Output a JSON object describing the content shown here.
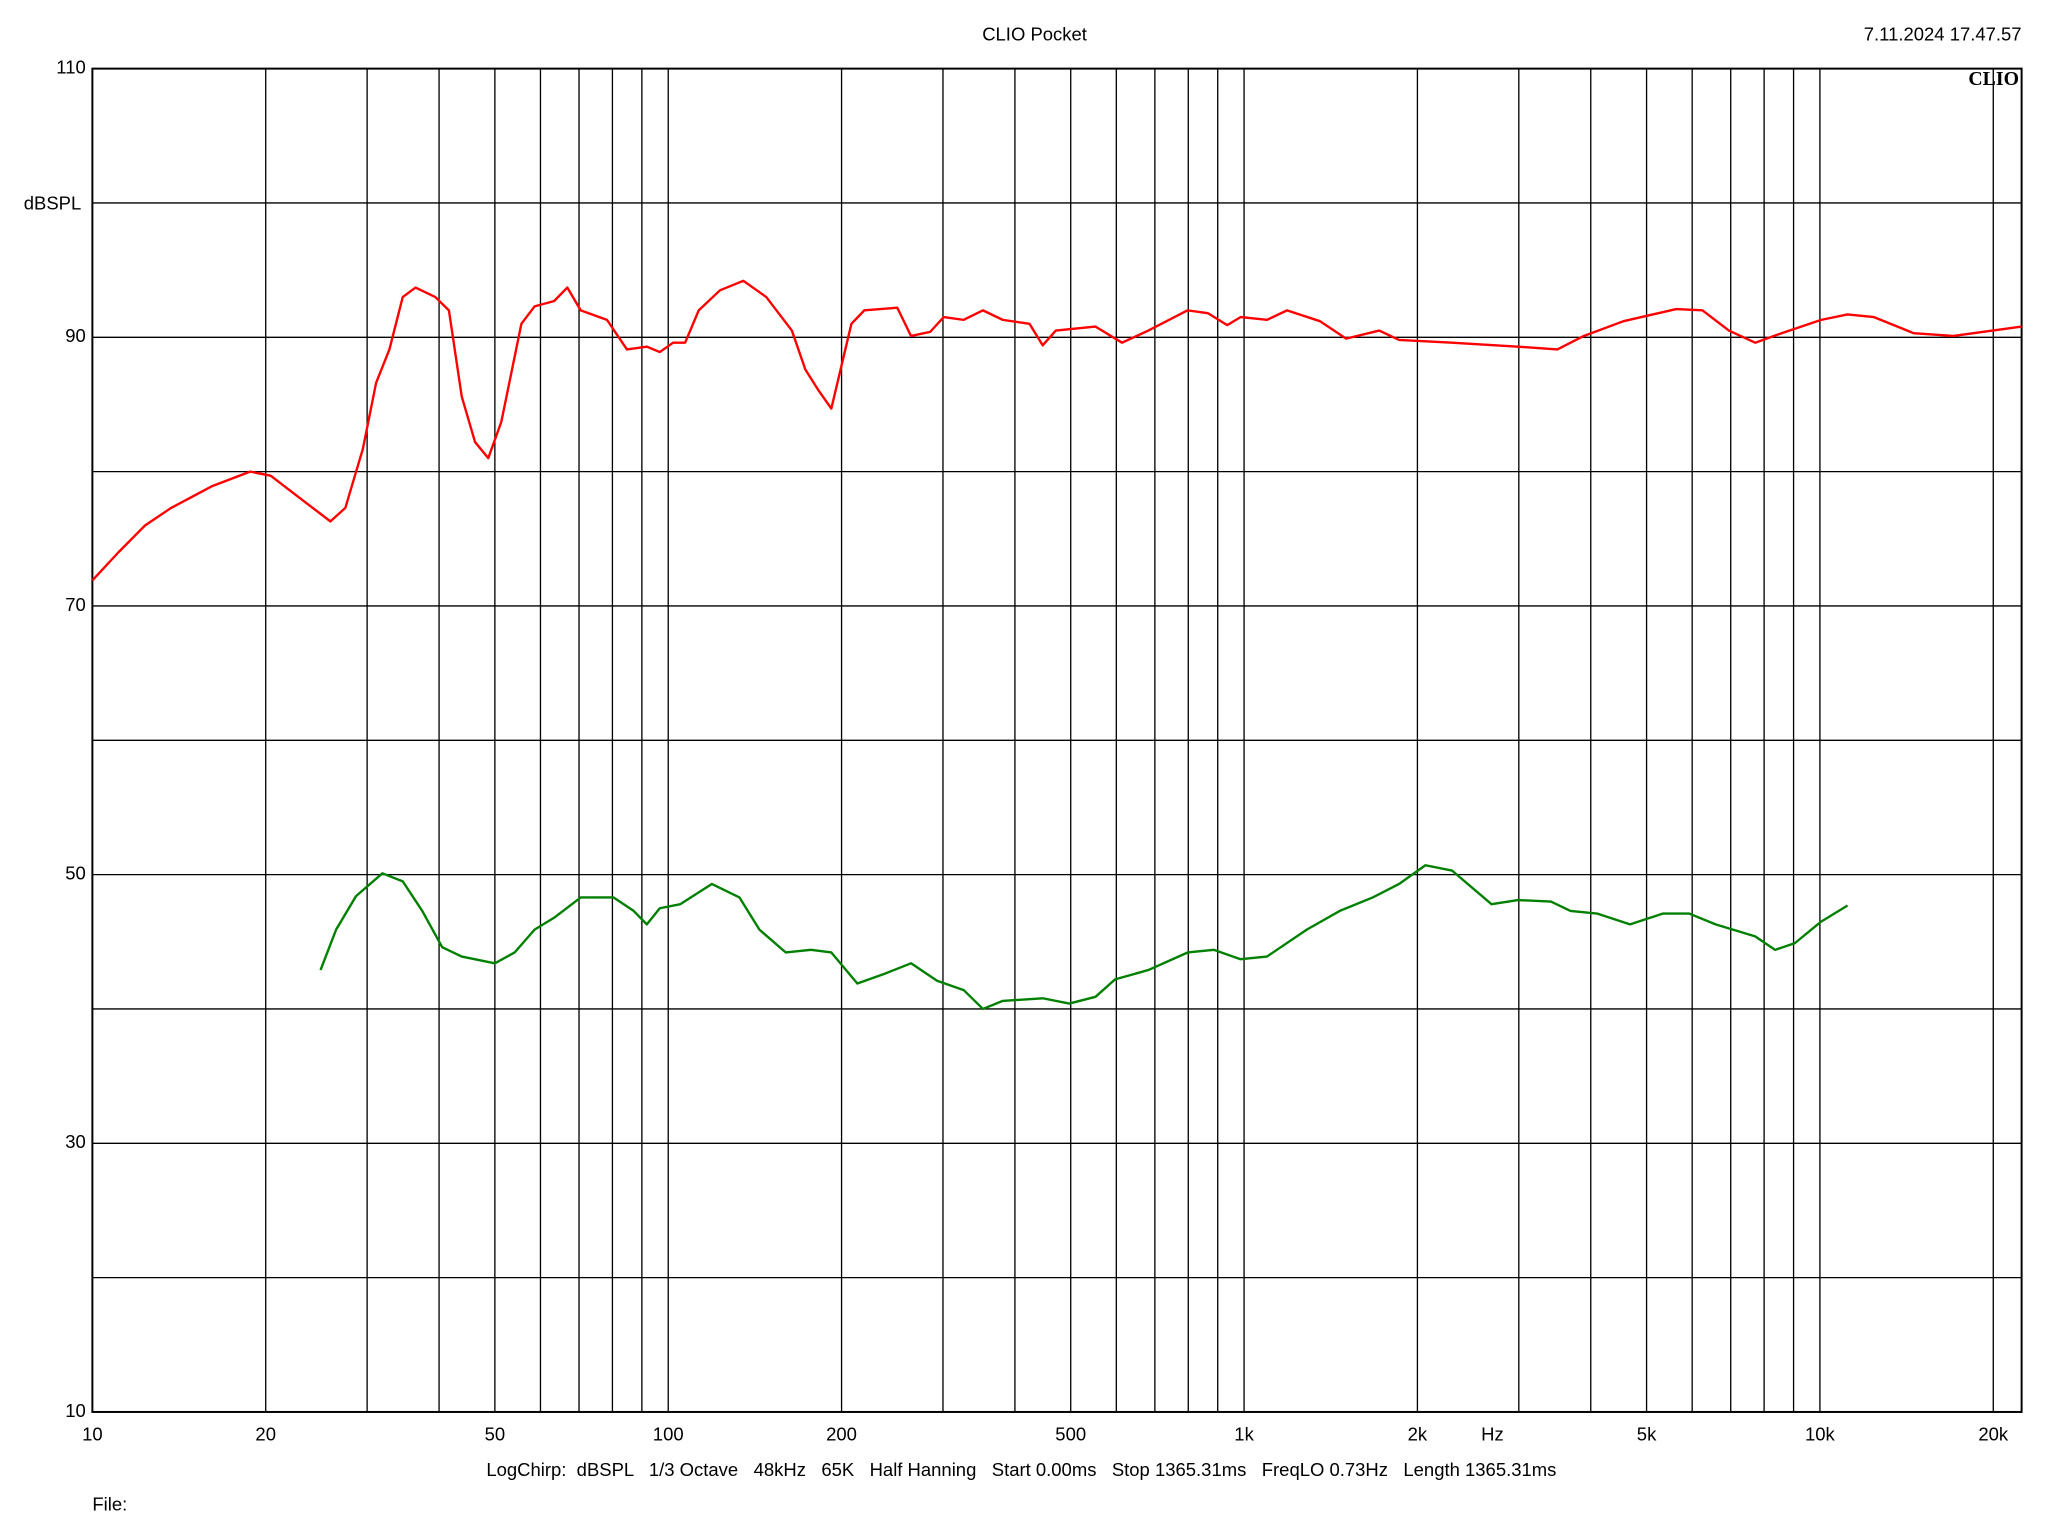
{
  "chart_data": {
    "type": "line",
    "title": "CLIO Pocket",
    "timestamp": "7.11.2024 17.47.57",
    "logo": "CLIO",
    "ylabel": "dBSPL",
    "xlabel": "Hz",
    "footer": "LogChirp:  dBSPL   1/3 Octave   48kHz   65K   Half Hanning   Start 0.00ms   Stop 1365.31ms   FreqLO 0.73Hz   Length 1365.31ms",
    "file_label": "File:",
    "xscale": "log",
    "grid": true,
    "xlim": [
      10,
      22400
    ],
    "ylim": [
      10,
      110
    ],
    "xticks": [
      10,
      20,
      50,
      100,
      200,
      500,
      {
        "value": 1000,
        "label": "1k"
      },
      {
        "value": 2000,
        "label": "2k"
      },
      {
        "value": 5000,
        "label": "5k"
      },
      {
        "value": 10000,
        "label": "10k"
      },
      {
        "value": 20000,
        "label": "20k"
      }
    ],
    "xminor": [
      30,
      40,
      60,
      70,
      80,
      90,
      300,
      400,
      600,
      700,
      800,
      900,
      3000,
      4000,
      6000,
      7000,
      8000,
      9000
    ],
    "yticks": [
      10,
      30,
      50,
      70,
      90,
      110
    ],
    "yminor": [
      20,
      40,
      60,
      80,
      100
    ],
    "series": [
      {
        "color": "#ff0000",
        "x": [
          10,
          11.1,
          12.35,
          13.7,
          16.1,
          18.8,
          20.4,
          23.3,
          25.9,
          27.5,
          29.5,
          31.1,
          32.8,
          34.6,
          36.4,
          39.4,
          41.6,
          43.8,
          46.2,
          48.7,
          51.3,
          55.6,
          58.6,
          63.4,
          66.8,
          70.5,
          78.3,
          84.8,
          91.8,
          96.7,
          102,
          107,
          113,
          123,
          135,
          148,
          164,
          173,
          182,
          192,
          208,
          219,
          250,
          264,
          285,
          301,
          326,
          352,
          381,
          424,
          447,
          471,
          552,
          614,
          682,
          798,
          865,
          935,
          986,
          1096,
          1187,
          1355,
          1504,
          1717,
          1858,
          2296,
          2989,
          3500,
          3890,
          4560,
          5630,
          6250,
          6950,
          7720,
          8580,
          10050,
          11170,
          12410,
          14550,
          17050,
          19950,
          22400
        ],
        "values": [
          71.9,
          74.0,
          76.0,
          77.3,
          78.9,
          80.0,
          79.7,
          77.8,
          76.3,
          77.3,
          81.7,
          86.6,
          89.1,
          93.0,
          93.7,
          93.0,
          92.0,
          85.6,
          82.2,
          81.0,
          83.7,
          91.0,
          92.3,
          92.7,
          93.7,
          92.0,
          91.3,
          89.1,
          89.3,
          88.9,
          89.6,
          89.6,
          92.0,
          93.5,
          94.2,
          93.0,
          90.5,
          87.6,
          86.1,
          84.7,
          91.0,
          92.0,
          92.2,
          90.1,
          90.4,
          91.5,
          91.3,
          92.0,
          91.3,
          91.0,
          89.4,
          90.5,
          90.8,
          89.6,
          90.5,
          92.0,
          91.8,
          90.9,
          91.5,
          91.3,
          92.0,
          91.2,
          89.9,
          90.5,
          89.8,
          89.6,
          89.3,
          89.1,
          90.1,
          91.2,
          92.1,
          92.0,
          90.5,
          89.6,
          90.3,
          91.3,
          91.7,
          91.5,
          90.3,
          90.1,
          90.5,
          90.8
        ]
      },
      {
        "color": "#008000",
        "x": [
          24.9,
          26.5,
          28.7,
          31.9,
          34.6,
          37.4,
          40.5,
          43.8,
          50.0,
          54.1,
          58.6,
          63.4,
          70.5,
          80.4,
          87.1,
          91.8,
          96.7,
          105,
          119,
          133,
          144,
          160,
          177,
          192,
          213,
          237,
          264,
          293,
          326,
          352,
          381,
          447,
          497,
          552,
          597,
          682,
          798,
          887,
          986,
          1096,
          1285,
          1466,
          1673,
          1858,
          2065,
          2296,
          2690,
          2989,
          3410,
          3690,
          4100,
          4680,
          5340,
          5930,
          6590,
          7720,
          8360,
          9050,
          10050,
          11170
        ],
        "values": [
          42.9,
          45.9,
          48.4,
          50.1,
          49.5,
          47.3,
          44.6,
          43.9,
          43.4,
          44.2,
          45.9,
          46.8,
          48.3,
          48.3,
          47.3,
          46.3,
          47.5,
          47.8,
          49.3,
          48.3,
          45.9,
          44.2,
          44.4,
          44.2,
          41.9,
          42.6,
          43.4,
          42.1,
          41.4,
          40.0,
          40.6,
          40.8,
          40.4,
          40.9,
          42.2,
          42.9,
          44.2,
          44.4,
          43.7,
          43.9,
          45.9,
          47.3,
          48.3,
          49.3,
          50.7,
          50.3,
          47.8,
          48.1,
          48.0,
          47.3,
          47.1,
          46.3,
          47.1,
          47.1,
          46.3,
          45.4,
          44.4,
          44.9,
          46.5,
          47.7
        ]
      }
    ]
  }
}
